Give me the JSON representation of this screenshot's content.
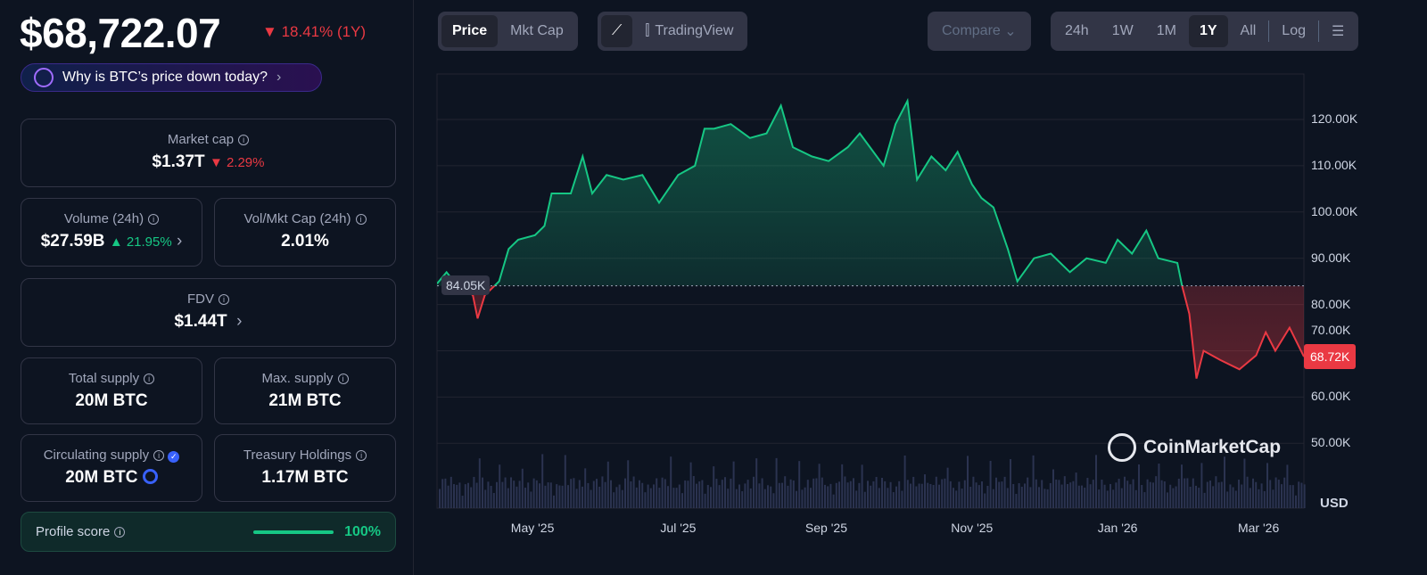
{
  "header": {
    "price": "$68,722.07",
    "change": "18.41% (1Y)",
    "why_button": "Why is BTC’s price down today?"
  },
  "stats": {
    "market_cap": {
      "label": "Market cap",
      "value": "$1.37T",
      "change": "2.29%"
    },
    "volume": {
      "label": "Volume (24h)",
      "value": "$27.59B",
      "change": "21.95%"
    },
    "vol_mkt": {
      "label": "Vol/Mkt Cap (24h)",
      "value": "2.01%"
    },
    "fdv": {
      "label": "FDV",
      "value": "$1.44T"
    },
    "total_supply": {
      "label": "Total supply",
      "value": "20M BTC"
    },
    "max_supply": {
      "label": "Max. supply",
      "value": "21M BTC"
    },
    "circulating": {
      "label": "Circulating supply",
      "value": "20M BTC"
    },
    "treasury": {
      "label": "Treasury Holdings",
      "value": "1.17M BTC"
    },
    "profile": {
      "label": "Profile score",
      "value": "100%",
      "percent": 100
    }
  },
  "toolbar": {
    "price": "Price",
    "mkt_cap": "Mkt Cap",
    "tradingview": "TradingView",
    "compare": "Compare",
    "ranges": [
      "24h",
      "1W",
      "1M",
      "1Y",
      "All"
    ],
    "selected_range": "1Y",
    "log": "Log"
  },
  "chart_data": {
    "type": "area",
    "watermark": "CoinMarketCap",
    "currency": "USD",
    "baseline": 84.05,
    "baseline_label": "84.05K",
    "last_label": "68.72K",
    "ylim": [
      50,
      125
    ],
    "yticks": [
      "120.00K",
      "110.00K",
      "100.00K",
      "90.00K",
      "80.00K",
      "70.00K",
      "60.00K",
      "50.00K"
    ],
    "xticks": [
      {
        "label": "May '25",
        "date": "2025-05-01"
      },
      {
        "label": "Jul '25",
        "date": "2025-07-01"
      },
      {
        "label": "Sep '25",
        "date": "2025-09-01"
      },
      {
        "label": "Nov '25",
        "date": "2025-11-01"
      },
      {
        "label": "Jan '26",
        "date": "2026-01-01"
      },
      {
        "label": "Mar '26",
        "date": "2026-03-01"
      }
    ],
    "xlim": [
      "2025-03-22",
      "2026-03-20"
    ],
    "colors": {
      "up": "#16c784",
      "down": "#ea3943"
    },
    "points": [
      [
        "2025-03-22",
        84.5
      ],
      [
        "2025-03-26",
        87
      ],
      [
        "2025-03-29",
        85
      ],
      [
        "2025-04-06",
        82
      ],
      [
        "2025-04-08",
        77
      ],
      [
        "2025-04-11",
        82
      ],
      [
        "2025-04-17",
        85
      ],
      [
        "2025-04-21",
        92
      ],
      [
        "2025-04-25",
        94
      ],
      [
        "2025-05-02",
        95
      ],
      [
        "2025-05-06",
        97
      ],
      [
        "2025-05-09",
        104
      ],
      [
        "2025-05-17",
        104
      ],
      [
        "2025-05-22",
        112
      ],
      [
        "2025-05-26",
        104
      ],
      [
        "2025-06-01",
        108
      ],
      [
        "2025-06-08",
        107
      ],
      [
        "2025-06-16",
        108
      ],
      [
        "2025-06-23",
        102
      ],
      [
        "2025-07-01",
        108
      ],
      [
        "2025-07-08",
        110
      ],
      [
        "2025-07-12",
        118
      ],
      [
        "2025-07-16",
        118
      ],
      [
        "2025-07-23",
        119
      ],
      [
        "2025-07-31",
        116
      ],
      [
        "2025-08-07",
        117
      ],
      [
        "2025-08-13",
        123
      ],
      [
        "2025-08-18",
        114
      ],
      [
        "2025-08-26",
        112
      ],
      [
        "2025-09-02",
        111
      ],
      [
        "2025-09-10",
        114
      ],
      [
        "2025-09-15",
        117
      ],
      [
        "2025-09-25",
        110
      ],
      [
        "2025-09-30",
        119
      ],
      [
        "2025-10-05",
        124
      ],
      [
        "2025-10-09",
        107
      ],
      [
        "2025-10-15",
        112
      ],
      [
        "2025-10-21",
        109
      ],
      [
        "2025-10-26",
        113
      ],
      [
        "2025-11-01",
        106
      ],
      [
        "2025-11-05",
        103
      ],
      [
        "2025-11-10",
        101
      ],
      [
        "2025-11-16",
        92
      ],
      [
        "2025-11-20",
        85
      ],
      [
        "2025-11-27",
        90
      ],
      [
        "2025-12-04",
        91
      ],
      [
        "2025-12-12",
        87
      ],
      [
        "2025-12-19",
        90
      ],
      [
        "2025-12-27",
        89
      ],
      [
        "2026-01-01",
        94
      ],
      [
        "2026-01-07",
        91
      ],
      [
        "2026-01-13",
        96
      ],
      [
        "2026-01-18",
        90
      ],
      [
        "2026-01-26",
        89
      ],
      [
        "2026-01-28",
        84
      ],
      [
        "2026-01-31",
        78
      ],
      [
        "2026-02-03",
        64
      ],
      [
        "2026-02-06",
        70
      ],
      [
        "2026-02-13",
        68
      ],
      [
        "2026-02-21",
        66
      ],
      [
        "2026-02-28",
        69
      ],
      [
        "2026-03-04",
        74
      ],
      [
        "2026-03-08",
        70
      ],
      [
        "2026-03-14",
        75
      ],
      [
        "2026-03-20",
        68.72
      ]
    ]
  }
}
